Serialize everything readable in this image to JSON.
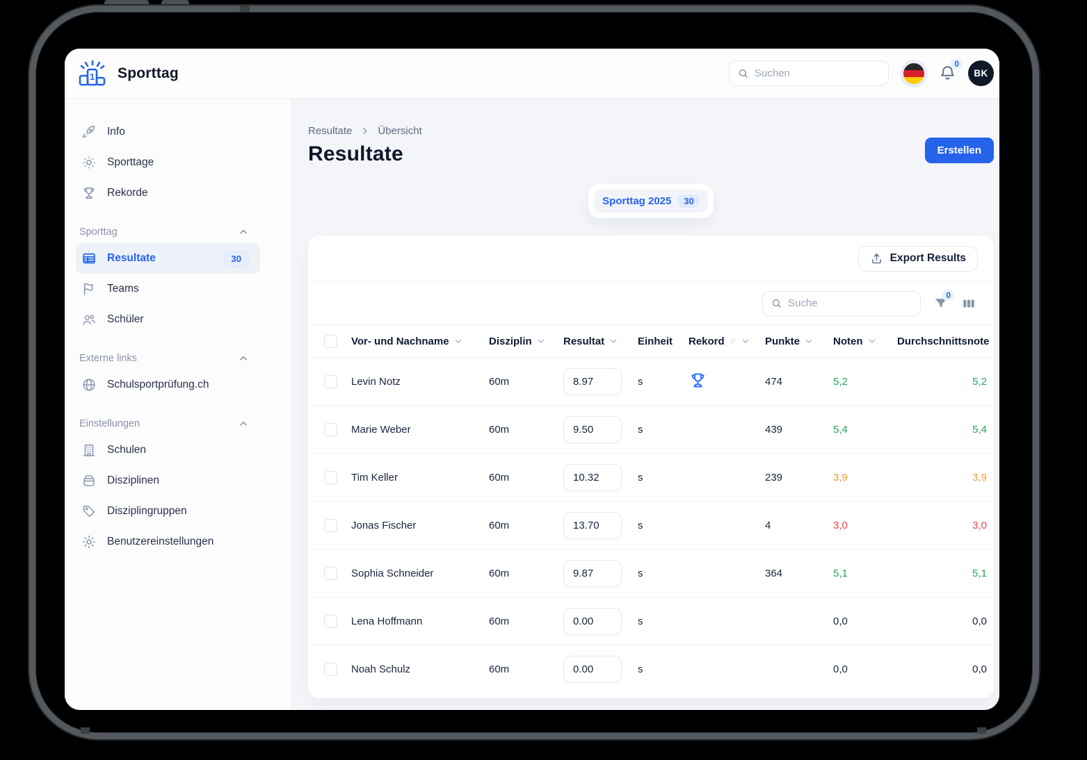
{
  "header": {
    "app_name": "Sporttag",
    "search_placeholder": "Suchen",
    "notification_count": "0",
    "avatar_initials": "BK",
    "language_flag": "germany"
  },
  "sidebar": {
    "top_items": [
      {
        "icon": "rocket-icon",
        "label": "Info"
      },
      {
        "icon": "sun-icon",
        "label": "Sporttage"
      },
      {
        "icon": "trophy-icon",
        "label": "Rekorde"
      }
    ],
    "sections": [
      {
        "title": "Sporttag",
        "items": [
          {
            "icon": "table-icon",
            "label": "Resultate",
            "badge": "30",
            "active": true
          },
          {
            "icon": "flag-icon",
            "label": "Teams"
          },
          {
            "icon": "users-icon",
            "label": "Schüler"
          }
        ]
      },
      {
        "title": "Externe links",
        "items": [
          {
            "icon": "globe-icon",
            "label": "Schulsportprüfung.ch"
          }
        ]
      },
      {
        "title": "Einstellungen",
        "items": [
          {
            "icon": "building-icon",
            "label": "Schulen"
          },
          {
            "icon": "drawer-icon",
            "label": "Disziplinen"
          },
          {
            "icon": "tag-icon",
            "label": "Disziplingruppen"
          },
          {
            "icon": "gear-icon",
            "label": "Benutzereinstellungen"
          }
        ]
      }
    ]
  },
  "main": {
    "breadcrumb": {
      "items": [
        "Resultate",
        "Übersicht"
      ]
    },
    "title": "Resultate",
    "create_button": "Erstellen",
    "event_chip": {
      "label": "Sporttag 2025",
      "badge": "30"
    },
    "toolbar": {
      "export_button": "Export Results",
      "search_placeholder": "Suche",
      "filter_badge": "0"
    },
    "table": {
      "columns": [
        {
          "id": "select",
          "label": "",
          "sortable": false
        },
        {
          "id": "name",
          "label": "Vor- und Nachname",
          "sortable": true
        },
        {
          "id": "disziplin",
          "label": "Disziplin",
          "sortable": true
        },
        {
          "id": "resultat",
          "label": "Resultat",
          "sortable": true
        },
        {
          "id": "einheit",
          "label": "Einheit",
          "sortable": false
        },
        {
          "id": "rekord",
          "label": "Rekord",
          "male_symbol": "♂",
          "sortable": true
        },
        {
          "id": "punkte",
          "label": "Punkte",
          "sortable": true
        },
        {
          "id": "noten",
          "label": "Noten",
          "sortable": true
        },
        {
          "id": "durchschnittsnote",
          "label": "Durchschnittsnote",
          "sortable": false,
          "align": "right"
        }
      ],
      "rows": [
        {
          "name": "Levin Notz",
          "disziplin": "60m",
          "resultat": "8.97",
          "einheit": "s",
          "rekord": true,
          "punkte": "474",
          "noten": "5,2",
          "durchschnittsnote": "5,2",
          "grade_color": "green"
        },
        {
          "name": "Marie Weber",
          "disziplin": "60m",
          "resultat": "9.50",
          "einheit": "s",
          "rekord": false,
          "punkte": "439",
          "noten": "5,4",
          "durchschnittsnote": "5,4",
          "grade_color": "green"
        },
        {
          "name": "Tim Keller",
          "disziplin": "60m",
          "resultat": "10.32",
          "einheit": "s",
          "rekord": false,
          "punkte": "239",
          "noten": "3,9",
          "durchschnittsnote": "3,9",
          "grade_color": "orange"
        },
        {
          "name": "Jonas Fischer",
          "disziplin": "60m",
          "resultat": "13.70",
          "einheit": "s",
          "rekord": false,
          "punkte": "4",
          "noten": "3,0",
          "durchschnittsnote": "3,0",
          "grade_color": "red"
        },
        {
          "name": "Sophia Schneider",
          "disziplin": "60m",
          "resultat": "9.87",
          "einheit": "s",
          "rekord": false,
          "punkte": "364",
          "noten": "5,1",
          "durchschnittsnote": "5,1",
          "grade_color": "green"
        },
        {
          "name": "Lena Hoffmann",
          "disziplin": "60m",
          "resultat": "0.00",
          "einheit": "s",
          "rekord": false,
          "punkte": "",
          "noten": "0,0",
          "durchschnittsnote": "0,0",
          "grade_color": "neutral"
        },
        {
          "name": "Noah Schulz",
          "disziplin": "60m",
          "resultat": "0.00",
          "einheit": "s",
          "rekord": false,
          "punkte": "",
          "noten": "0,0",
          "durchschnittsnote": "0,0",
          "grade_color": "neutral"
        }
      ]
    }
  },
  "colors": {
    "accent": "#2563eb",
    "grade_green": "#23a55c",
    "grade_orange": "#f19a2c",
    "grade_red": "#ee4444",
    "frame": "#54595e"
  }
}
